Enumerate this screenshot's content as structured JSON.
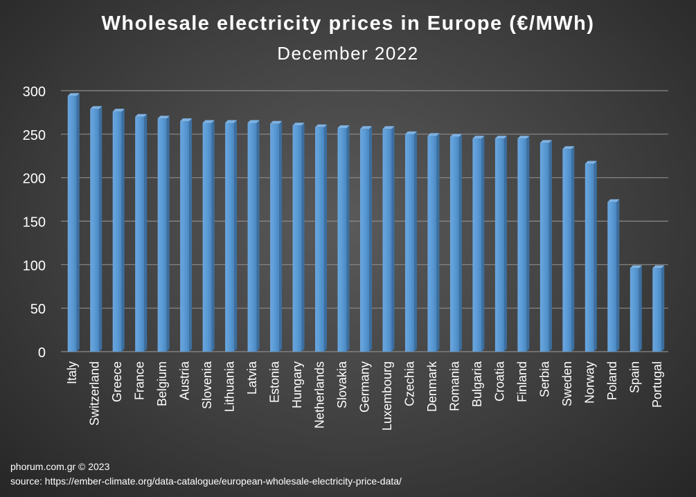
{
  "chart_data": {
    "type": "bar",
    "title": "Wholesale electricity prices in Europe (€/MWh)",
    "subtitle": "December 2022",
    "categories": [
      "Italy",
      "Switzerland",
      "Greece",
      "France",
      "Belgium",
      "Austria",
      "Slovenia",
      "Lithuania",
      "Latvia",
      "Estonia",
      "Hungary",
      "Netherlands",
      "Slovakia",
      "Germany",
      "Luxembourg",
      "Czechia",
      "Denmark",
      "Romania",
      "Bulgaria",
      "Croatia",
      "Finland",
      "Serbia",
      "Sweden",
      "Norway",
      "Poland",
      "Spain",
      "Portugal"
    ],
    "values": [
      294,
      279,
      276,
      270,
      268,
      265,
      263,
      263,
      263,
      262,
      260,
      258,
      257,
      256,
      256,
      250,
      248,
      247,
      245,
      245,
      245,
      240,
      233,
      216,
      172,
      96,
      96
    ],
    "ylim": [
      0,
      300
    ],
    "yticks": [
      0,
      50,
      100,
      150,
      200,
      250,
      300
    ],
    "grid": true,
    "bar_color": "#5b9bd5",
    "xlabel": "",
    "ylabel": ""
  },
  "footer": {
    "credit": "phorum.com.gr © 2023",
    "source": "source: https://ember-climate.org/data-catalogue/european-wholesale-electricity-price-data/"
  }
}
